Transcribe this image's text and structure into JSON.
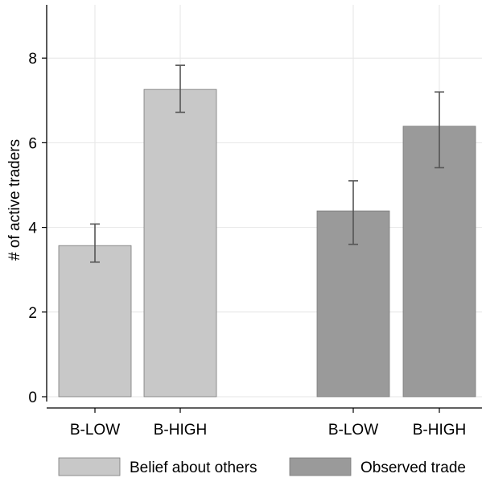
{
  "chart_data": {
    "type": "bar",
    "title": "",
    "xlabel": "",
    "ylabel": "# of active traders",
    "ylim": [
      0,
      9.4
    ],
    "yticks": [
      0,
      2,
      4,
      6,
      8
    ],
    "grid": true,
    "legend_position": "bottom",
    "series": [
      {
        "name": "Belief about others",
        "color": "#c8c8c8",
        "categories": [
          "B-LOW",
          "B-HIGH"
        ],
        "values": [
          3.57,
          7.26
        ],
        "ci_low": [
          3.18,
          6.72
        ],
        "ci_high": [
          4.08,
          7.83
        ]
      },
      {
        "name": "Observed trade",
        "color": "#9a9a9a",
        "categories": [
          "B-LOW",
          "B-HIGH"
        ],
        "values": [
          4.39,
          6.39
        ],
        "ci_low": [
          3.6,
          5.41
        ],
        "ci_high": [
          5.1,
          7.2
        ]
      }
    ]
  }
}
